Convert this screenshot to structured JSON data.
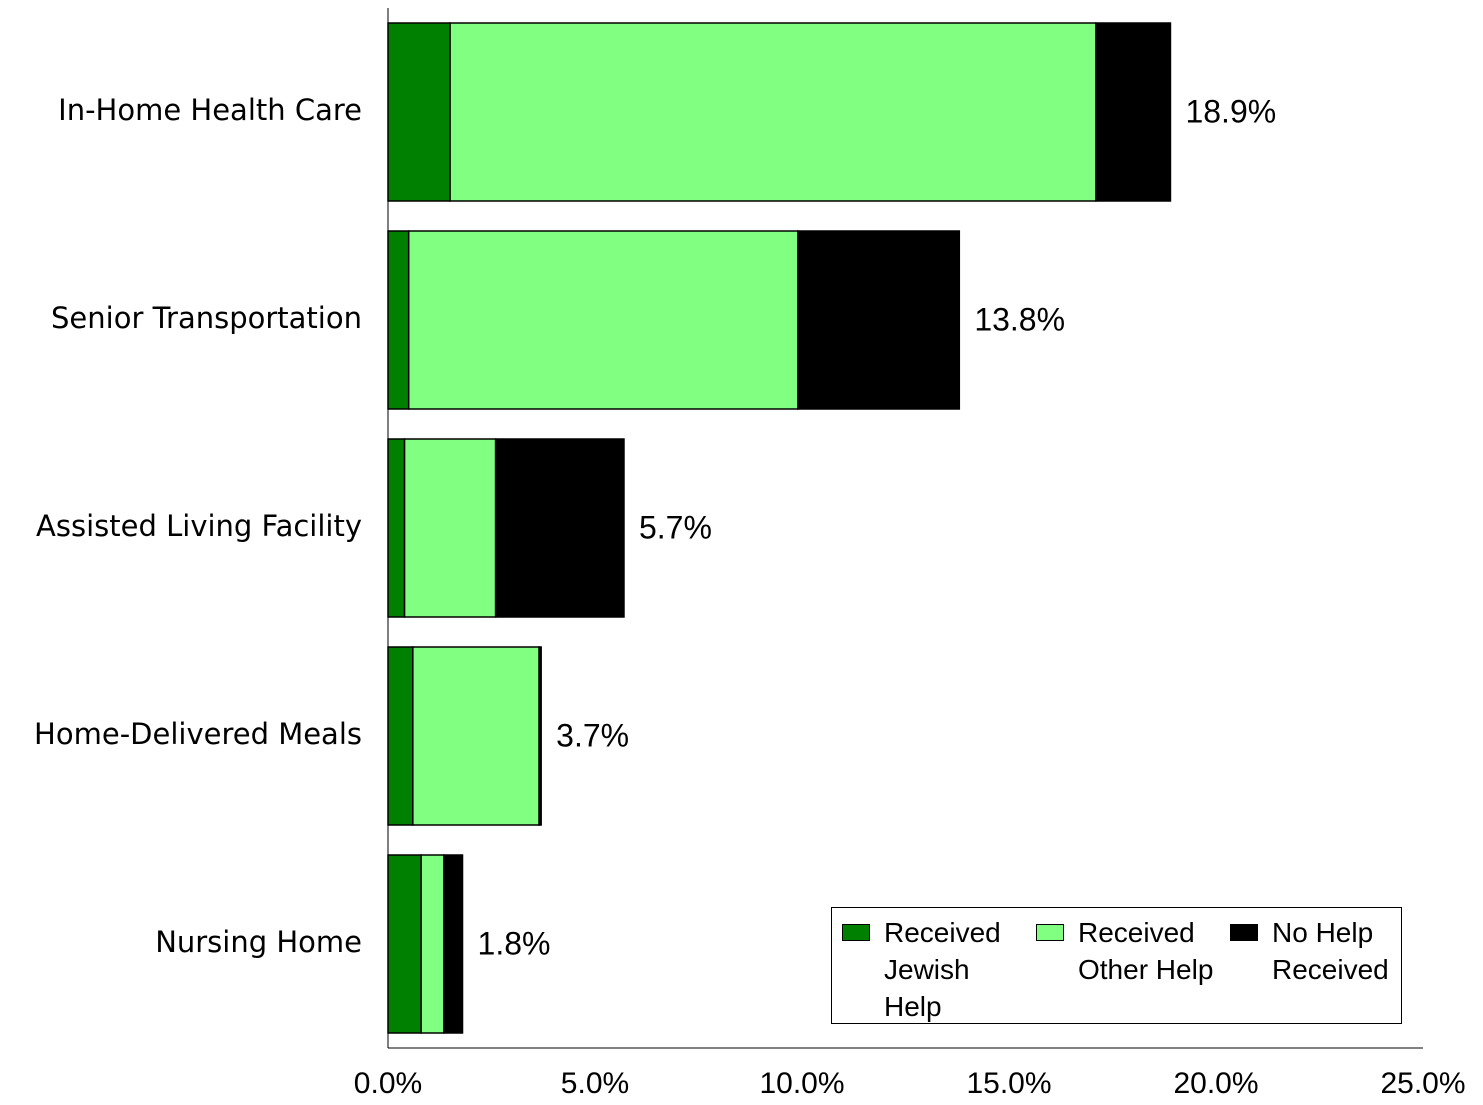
{
  "chart_data": {
    "type": "stacked-barh",
    "categories": [
      "In-Home Health Care",
      "Senior Transportation",
      "Assisted Living Facility",
      "Home-Delivered Meals",
      "Nursing Home"
    ],
    "series": [
      {
        "name": "Received Jewish Help",
        "color": "#008000",
        "values": [
          1.5,
          0.5,
          0.4,
          0.6,
          0.8
        ]
      },
      {
        "name": "Received Other Help",
        "color": "#80ff80",
        "values": [
          15.6,
          9.4,
          2.2,
          3.05,
          0.55
        ]
      },
      {
        "name": "No Help Received",
        "color": "#000000",
        "values": [
          1.8,
          3.9,
          3.1,
          0.05,
          0.45
        ]
      }
    ],
    "values": [
      18.9,
      13.8,
      5.7,
      3.7,
      1.8
    ],
    "value_labels": [
      "18.9%",
      "13.8%",
      "5.7%",
      "3.7%",
      "1.8%"
    ],
    "xlim": [
      0,
      25
    ],
    "xticks": [
      {
        "value": 0,
        "label": "0.0%"
      },
      {
        "value": 5,
        "label": "5.0%"
      },
      {
        "value": 10,
        "label": "10.0%"
      },
      {
        "value": 15,
        "label": "15.0%"
      },
      {
        "value": 20,
        "label": "20.0%"
      },
      {
        "value": 25,
        "label": "25.0%"
      }
    ],
    "grid": false,
    "legend": "lower right"
  }
}
